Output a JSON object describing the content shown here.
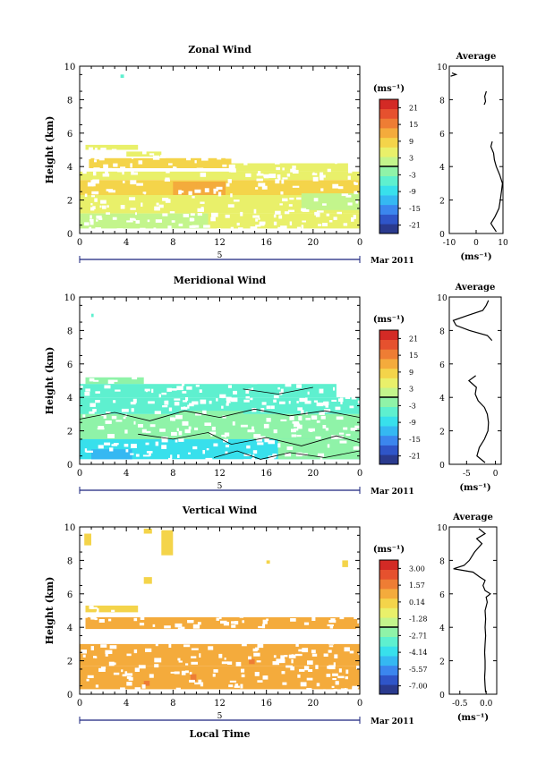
{
  "page_data_note": "",
  "chart_data": [
    {
      "type": "heatmap",
      "title": "Zonal Wind",
      "ylabel": "Height (km)",
      "xlabel": "",
      "x_ticks": [
        "0",
        "4",
        "8",
        "12",
        "16",
        "20",
        "0"
      ],
      "y_ticks": [
        "0",
        "2",
        "4",
        "6",
        "8",
        "10"
      ],
      "xlim": [
        0,
        24
      ],
      "ylim": [
        0,
        10
      ],
      "date_marker": "5",
      "date_label": "Mar 2011",
      "colorbar": {
        "unit": "(ms⁻¹)",
        "ticks": [
          "21",
          "15",
          "9",
          "3",
          "-3",
          "-9",
          "-15",
          "-21"
        ],
        "range": [
          -24,
          24
        ]
      },
      "cells": [
        {
          "t0": 0.5,
          "t1": 5.0,
          "h0": 5.0,
          "h1": 5.3,
          "v": 4
        },
        {
          "t0": 4.0,
          "t1": 7.0,
          "h0": 4.6,
          "h1": 4.9,
          "v": 5
        },
        {
          "t0": 0.8,
          "t1": 13.0,
          "h0": 3.9,
          "h1": 4.5,
          "v": 8
        },
        {
          "t0": 13.0,
          "t1": 23.0,
          "h0": 3.7,
          "h1": 4.2,
          "v": 6
        },
        {
          "t0": 0.0,
          "t1": 24.0,
          "h0": 3.2,
          "h1": 3.7,
          "v": 5
        },
        {
          "t0": 0.0,
          "t1": 24.0,
          "h0": 2.3,
          "h1": 3.2,
          "v": 7
        },
        {
          "t0": 8.0,
          "t1": 12.5,
          "h0": 2.0,
          "h1": 3.1,
          "v": 11
        },
        {
          "t0": 10.0,
          "t1": 12.0,
          "h0": 2.6,
          "h1": 3.0,
          "v": 13
        },
        {
          "t0": 0.0,
          "t1": 24.0,
          "h0": 1.2,
          "h1": 2.3,
          "v": 6
        },
        {
          "t0": 0.0,
          "t1": 11.0,
          "h0": 0.3,
          "h1": 1.2,
          "v": 2
        },
        {
          "t0": 11.0,
          "t1": 24.0,
          "h0": 0.3,
          "h1": 1.2,
          "v": 4
        },
        {
          "t0": 19.0,
          "t1": 24.0,
          "h0": 1.4,
          "h1": 2.4,
          "v": 2
        },
        {
          "t0": 3.5,
          "t1": 3.8,
          "h0": 9.3,
          "h1": 9.5,
          "v": -5
        }
      ],
      "contours": [],
      "average": {
        "title": "Average",
        "xlabel": "(ms⁻¹)",
        "x_ticks": [
          "-10",
          "0",
          "10"
        ],
        "xlim": [
          -10,
          10
        ],
        "y_ticks": [
          "0",
          "2",
          "4",
          "6",
          "8",
          "10"
        ],
        "ylim": [
          0,
          10
        ],
        "profile": [
          {
            "h": 0.1,
            "v": 7.5
          },
          {
            "h": 0.6,
            "v": 5.5
          },
          {
            "h": 1.0,
            "v": 7.0
          },
          {
            "h": 1.5,
            "v": 8.5
          },
          {
            "h": 2.0,
            "v": 9.0
          },
          {
            "h": 2.6,
            "v": 9.5
          },
          {
            "h": 3.0,
            "v": 9.8
          },
          {
            "h": 3.5,
            "v": 8.8
          },
          {
            "h": 4.0,
            "v": 7.5
          },
          {
            "h": 4.4,
            "v": 6.8
          },
          {
            "h": 4.8,
            "v": 6.5
          },
          {
            "h": 5.2,
            "v": 5.5
          },
          {
            "h": 5.5,
            "v": 6.0
          }
        ],
        "profile2": [
          {
            "h": 7.7,
            "v": 3.0
          },
          {
            "h": 7.9,
            "v": 3.5
          },
          {
            "h": 8.2,
            "v": 3.2
          },
          {
            "h": 8.5,
            "v": 3.8
          }
        ],
        "profile3": [
          {
            "h": 9.4,
            "v": -9.5
          },
          {
            "h": 9.5,
            "v": -7.5
          },
          {
            "h": 9.6,
            "v": -9.0
          }
        ]
      }
    },
    {
      "type": "heatmap",
      "title": "Meridional Wind",
      "ylabel": "Height (km)",
      "xlabel": "",
      "x_ticks": [
        "0",
        "4",
        "8",
        "12",
        "16",
        "20",
        "0"
      ],
      "y_ticks": [
        "0",
        "2",
        "4",
        "6",
        "8",
        "10"
      ],
      "xlim": [
        0,
        24
      ],
      "ylim": [
        0,
        10
      ],
      "date_marker": "5",
      "date_label": "Mar 2011",
      "colorbar": {
        "unit": "(ms⁻¹)",
        "ticks": [
          "21",
          "15",
          "9",
          "3",
          "-3",
          "-9",
          "-15",
          "-21"
        ],
        "range": [
          -24,
          24
        ]
      },
      "cells": [
        {
          "t0": 0.5,
          "t1": 5.5,
          "h0": 4.8,
          "h1": 5.2,
          "v": -3
        },
        {
          "t0": 0.0,
          "t1": 22.0,
          "h0": 4.0,
          "h1": 4.8,
          "v": -5
        },
        {
          "t0": 0.0,
          "t1": 24.0,
          "h0": 3.0,
          "h1": 4.0,
          "v": -6
        },
        {
          "t0": 0.0,
          "t1": 24.0,
          "h0": 1.5,
          "h1": 3.0,
          "v": -3
        },
        {
          "t0": 8.5,
          "t1": 14.0,
          "h0": 2.0,
          "h1": 3.2,
          "v": -1
        },
        {
          "t0": 0.0,
          "t1": 24.0,
          "h0": 0.3,
          "h1": 1.5,
          "v": -7
        },
        {
          "t0": 1.0,
          "t1": 4.5,
          "h0": 0.3,
          "h1": 0.9,
          "v": -11
        },
        {
          "t0": 17.0,
          "t1": 24.0,
          "h0": 0.3,
          "h1": 1.5,
          "v": -2
        },
        {
          "t0": 1.0,
          "t1": 1.2,
          "h0": 8.8,
          "h1": 9.0,
          "v": -4
        }
      ],
      "contours": [
        [
          {
            "t": 0.0,
            "h": 2.7
          },
          {
            "t": 3.0,
            "h": 3.1
          },
          {
            "t": 6.0,
            "h": 2.6
          },
          {
            "t": 9.0,
            "h": 3.2
          },
          {
            "t": 12.0,
            "h": 2.8
          },
          {
            "t": 15.0,
            "h": 3.3
          },
          {
            "t": 18.0,
            "h": 2.9
          },
          {
            "t": 21.0,
            "h": 3.2
          },
          {
            "t": 24.0,
            "h": 2.8
          }
        ],
        [
          {
            "t": 5.0,
            "h": 1.8
          },
          {
            "t": 8.0,
            "h": 1.5
          },
          {
            "t": 11.0,
            "h": 1.9
          },
          {
            "t": 13.0,
            "h": 1.2
          },
          {
            "t": 16.0,
            "h": 1.6
          },
          {
            "t": 19.0,
            "h": 1.1
          },
          {
            "t": 22.0,
            "h": 1.7
          },
          {
            "t": 24.0,
            "h": 1.3
          }
        ],
        [
          {
            "t": 11.5,
            "h": 0.4
          },
          {
            "t": 13.5,
            "h": 0.8
          },
          {
            "t": 15.5,
            "h": 0.3
          },
          {
            "t": 18.0,
            "h": 0.7
          },
          {
            "t": 21.0,
            "h": 0.4
          },
          {
            "t": 24.0,
            "h": 0.8
          }
        ],
        [
          {
            "t": 14.0,
            "h": 4.5
          },
          {
            "t": 17.0,
            "h": 4.2
          },
          {
            "t": 20.0,
            "h": 4.6
          }
        ]
      ],
      "average": {
        "title": "Average",
        "xlabel": "(ms⁻¹)",
        "x_ticks": [
          "-5",
          "0"
        ],
        "xlim": [
          -8,
          1
        ],
        "y_ticks": [
          "0",
          "2",
          "4",
          "6",
          "8",
          "10"
        ],
        "ylim": [
          0,
          10
        ],
        "profile": [
          {
            "h": 0.1,
            "v": -1.8
          },
          {
            "h": 0.5,
            "v": -3.2
          },
          {
            "h": 1.0,
            "v": -2.8
          },
          {
            "h": 1.5,
            "v": -1.9
          },
          {
            "h": 2.0,
            "v": -1.3
          },
          {
            "h": 2.5,
            "v": -1.2
          },
          {
            "h": 3.0,
            "v": -1.4
          },
          {
            "h": 3.4,
            "v": -1.9
          },
          {
            "h": 3.8,
            "v": -3.0
          },
          {
            "h": 4.2,
            "v": -3.5
          },
          {
            "h": 4.6,
            "v": -3.3
          },
          {
            "h": 5.0,
            "v": -4.6
          },
          {
            "h": 5.3,
            "v": -3.4
          }
        ],
        "profile2": [
          {
            "h": 7.4,
            "v": -0.6
          },
          {
            "h": 7.7,
            "v": -1.4
          },
          {
            "h": 8.0,
            "v": -4.5
          },
          {
            "h": 8.3,
            "v": -6.8
          },
          {
            "h": 8.6,
            "v": -7.3
          },
          {
            "h": 8.9,
            "v": -4.8
          },
          {
            "h": 9.2,
            "v": -2.2
          },
          {
            "h": 9.5,
            "v": -1.6
          },
          {
            "h": 9.8,
            "v": -1.2
          }
        ],
        "profile3": []
      }
    },
    {
      "type": "heatmap",
      "title": "Vertical Wind",
      "ylabel": "Height (km)",
      "xlabel": "Local Time",
      "x_ticks": [
        "0",
        "4",
        "8",
        "12",
        "16",
        "20",
        "0"
      ],
      "y_ticks": [
        "0",
        "2",
        "4",
        "6",
        "8",
        "10"
      ],
      "xlim": [
        0,
        24
      ],
      "ylim": [
        0,
        10
      ],
      "date_marker": "5",
      "date_label": "Mar 2011",
      "colorbar": {
        "unit": "(ms⁻¹)",
        "ticks": [
          "3.00",
          "1.57",
          "0.14",
          "-1.28",
          "-2.71",
          "-4.14",
          "-5.57",
          "-7.00"
        ],
        "range": [
          -7.7,
          3.7
        ]
      },
      "cells": [
        {
          "t0": 0.5,
          "t1": 5.0,
          "h0": 4.9,
          "h1": 5.3,
          "v": 0.4
        },
        {
          "t0": 0.5,
          "t1": 24.0,
          "h0": 3.9,
          "h1": 4.6,
          "v": 0.6
        },
        {
          "t0": 0.0,
          "t1": 24.0,
          "h0": 2.3,
          "h1": 3.0,
          "v": 0.7
        },
        {
          "t0": 0.0,
          "t1": 24.0,
          "h0": 1.7,
          "h1": 2.3,
          "v": 0.5
        },
        {
          "t0": 0.0,
          "t1": 24.0,
          "h0": 0.3,
          "h1": 1.7,
          "v": 0.9
        },
        {
          "t0": 9.5,
          "t1": 10.0,
          "h0": 0.8,
          "h1": 1.2,
          "v": 1.5
        },
        {
          "t0": 14.5,
          "t1": 15.0,
          "h0": 1.8,
          "h1": 2.1,
          "v": 1.5
        },
        {
          "t0": 5.5,
          "t1": 6.0,
          "h0": 0.5,
          "h1": 0.8,
          "v": 1.6
        },
        {
          "t0": 0.4,
          "t1": 1.0,
          "h0": 8.9,
          "h1": 9.6,
          "v": 0.3
        },
        {
          "t0": 5.5,
          "t1": 6.2,
          "h0": 9.6,
          "h1": 9.9,
          "v": 0.3
        },
        {
          "t0": 7.0,
          "t1": 8.0,
          "h0": 8.3,
          "h1": 9.8,
          "v": 0.4
        },
        {
          "t0": 5.5,
          "t1": 6.2,
          "h0": 6.6,
          "h1": 7.0,
          "v": 0.2
        },
        {
          "t0": 22.5,
          "t1": 23.0,
          "h0": 7.6,
          "h1": 8.0,
          "v": 0.3
        },
        {
          "t0": 16.0,
          "t1": 16.3,
          "h0": 7.8,
          "h1": 8.0,
          "v": 0.3
        }
      ],
      "contours": [],
      "average": {
        "title": "Average",
        "xlabel": "(ms⁻¹)",
        "x_ticks": [
          "-0.5",
          "0.0"
        ],
        "xlim": [
          -0.7,
          0.2
        ],
        "y_ticks": [
          "0",
          "2",
          "4",
          "6",
          "8",
          "10"
        ],
        "ylim": [
          0,
          10
        ],
        "profile": [
          {
            "h": 0.1,
            "v": -0.01
          },
          {
            "h": 0.5,
            "v": -0.02
          },
          {
            "h": 1.0,
            "v": -0.03
          },
          {
            "h": 1.5,
            "v": -0.02
          },
          {
            "h": 2.0,
            "v": -0.02
          },
          {
            "h": 2.5,
            "v": -0.03
          },
          {
            "h": 3.0,
            "v": -0.02
          },
          {
            "h": 3.5,
            "v": -0.01
          },
          {
            "h": 4.0,
            "v": -0.02
          },
          {
            "h": 4.5,
            "v": -0.01
          },
          {
            "h": 5.0,
            "v": -0.02
          },
          {
            "h": 5.5,
            "v": 0.02
          },
          {
            "h": 5.8,
            "v": 0.0
          },
          {
            "h": 6.0,
            "v": 0.08
          },
          {
            "h": 6.2,
            "v": -0.02
          },
          {
            "h": 6.5,
            "v": -0.06
          },
          {
            "h": 6.8,
            "v": -0.02
          },
          {
            "h": 7.0,
            "v": -0.12
          },
          {
            "h": 7.3,
            "v": -0.25
          },
          {
            "h": 7.5,
            "v": -0.62
          },
          {
            "h": 7.7,
            "v": -0.42
          },
          {
            "h": 8.0,
            "v": -0.32
          },
          {
            "h": 8.5,
            "v": -0.22
          },
          {
            "h": 9.0,
            "v": -0.08
          },
          {
            "h": 9.3,
            "v": -0.18
          },
          {
            "h": 9.6,
            "v": -0.02
          },
          {
            "h": 9.9,
            "v": -0.14
          }
        ],
        "profile2": [],
        "profile3": []
      }
    }
  ]
}
